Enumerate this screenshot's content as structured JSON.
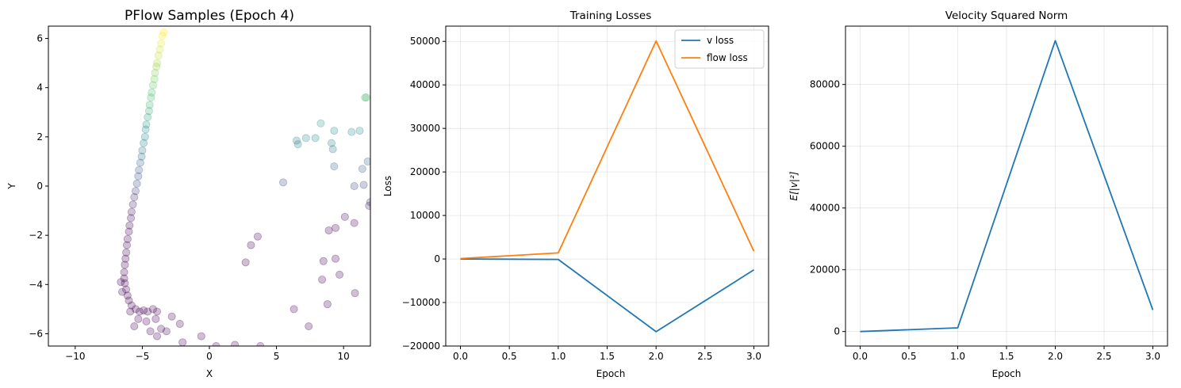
{
  "chart_data": [
    {
      "type": "scatter",
      "title": "PFlow Samples (Epoch 4)",
      "xlabel": "X",
      "ylabel": "Y",
      "xlim": [
        -12,
        12
      ],
      "ylim": [
        -6.5,
        6.5
      ],
      "xticks": [
        -10,
        -5,
        0,
        5,
        10
      ],
      "yticks": [
        -6,
        -4,
        -2,
        0,
        2,
        4,
        6
      ],
      "x_tick_labels": [
        "−10",
        "−5",
        "0",
        "5",
        "10"
      ],
      "y_tick_labels": [
        "−6",
        "−4",
        "−2",
        "0",
        "2",
        "4",
        "6"
      ],
      "grid": false,
      "colormap": "viridis",
      "point_alpha": 0.25,
      "points": [
        [
          -3.4,
          6.25
        ],
        [
          -3.5,
          6.1
        ],
        [
          -3.6,
          5.8
        ],
        [
          -3.7,
          5.55
        ],
        [
          -3.8,
          5.3
        ],
        [
          -3.9,
          5.0
        ],
        [
          -3.95,
          4.85
        ],
        [
          -4.05,
          4.6
        ],
        [
          -4.1,
          4.35
        ],
        [
          -4.2,
          4.1
        ],
        [
          -4.3,
          3.8
        ],
        [
          -4.35,
          3.6
        ],
        [
          -4.45,
          3.3
        ],
        [
          -4.5,
          3.05
        ],
        [
          -4.6,
          2.8
        ],
        [
          -4.7,
          2.5
        ],
        [
          -4.75,
          2.3
        ],
        [
          -4.8,
          2.0
        ],
        [
          -4.9,
          1.75
        ],
        [
          -5.0,
          1.45
        ],
        [
          -5.05,
          1.2
        ],
        [
          -5.15,
          0.95
        ],
        [
          -5.25,
          0.65
        ],
        [
          -5.3,
          0.4
        ],
        [
          -5.4,
          0.1
        ],
        [
          -5.5,
          -0.2
        ],
        [
          -5.6,
          -0.45
        ],
        [
          -5.7,
          -0.75
        ],
        [
          -5.8,
          -1.05
        ],
        [
          -5.85,
          -1.3
        ],
        [
          -5.95,
          -1.6
        ],
        [
          -6.0,
          -1.85
        ],
        [
          -6.1,
          -2.15
        ],
        [
          -6.15,
          -2.4
        ],
        [
          -6.2,
          -2.7
        ],
        [
          -6.25,
          -2.95
        ],
        [
          -6.3,
          -3.2
        ],
        [
          -6.35,
          -3.5
        ],
        [
          -6.35,
          -3.75
        ],
        [
          -6.3,
          -3.95
        ],
        [
          -6.2,
          -4.2
        ],
        [
          -6.1,
          -4.45
        ],
        [
          -6.0,
          -4.65
        ],
        [
          -5.8,
          -4.85
        ],
        [
          -5.5,
          -5.0
        ],
        [
          -5.2,
          -5.1
        ],
        [
          -4.9,
          -5.05
        ],
        [
          -4.6,
          -5.1
        ],
        [
          -4.2,
          -5.0
        ],
        [
          -3.9,
          -5.1
        ],
        [
          -6.6,
          -3.9
        ],
        [
          -6.5,
          -4.3
        ],
        [
          -5.9,
          -5.1
        ],
        [
          -5.3,
          -5.4
        ],
        [
          -4.7,
          -5.5
        ],
        [
          -4.0,
          -5.4
        ],
        [
          -3.6,
          -5.8
        ],
        [
          -3.2,
          -5.9
        ],
        [
          -2.8,
          -5.3
        ],
        [
          -2.2,
          -5.6
        ],
        [
          -3.9,
          -6.1
        ],
        [
          -4.4,
          -5.9
        ],
        [
          -5.6,
          -5.7
        ],
        [
          -2.0,
          -6.35
        ],
        [
          -0.6,
          -6.1
        ],
        [
          0.5,
          -6.5
        ],
        [
          1.9,
          -6.45
        ],
        [
          3.8,
          -6.5
        ],
        [
          2.7,
          -3.1
        ],
        [
          3.1,
          -2.4
        ],
        [
          3.6,
          -2.05
        ],
        [
          5.5,
          0.15
        ],
        [
          6.3,
          -5.0
        ],
        [
          6.5,
          1.85
        ],
        [
          6.6,
          1.7
        ],
        [
          7.2,
          1.95
        ],
        [
          7.4,
          -5.7
        ],
        [
          7.9,
          1.95
        ],
        [
          8.3,
          2.55
        ],
        [
          8.4,
          -3.8
        ],
        [
          8.5,
          -3.05
        ],
        [
          8.8,
          -4.8
        ],
        [
          8.9,
          -1.8
        ],
        [
          9.1,
          1.75
        ],
        [
          9.2,
          1.5
        ],
        [
          9.3,
          0.8
        ],
        [
          9.3,
          2.25
        ],
        [
          9.4,
          -2.95
        ],
        [
          9.4,
          -1.7
        ],
        [
          9.7,
          -3.6
        ],
        [
          10.1,
          -1.25
        ],
        [
          10.6,
          2.2
        ],
        [
          10.8,
          0.0
        ],
        [
          10.8,
          -1.5
        ],
        [
          10.85,
          -4.35
        ],
        [
          11.2,
          2.25
        ],
        [
          11.4,
          0.7
        ],
        [
          11.5,
          0.05
        ],
        [
          11.6,
          3.6
        ],
        [
          11.7,
          3.6
        ],
        [
          11.8,
          1.0
        ],
        [
          11.9,
          -0.8
        ],
        [
          12.0,
          -0.65
        ]
      ]
    },
    {
      "type": "line",
      "title": "Training Losses",
      "xlabel": "Epoch",
      "ylabel": "Loss",
      "x": [
        0,
        1,
        2,
        3
      ],
      "xlim": [
        -0.15,
        3.15
      ],
      "ylim": [
        -20000,
        53500
      ],
      "xticks": [
        0.0,
        0.5,
        1.0,
        1.5,
        2.0,
        2.5,
        3.0
      ],
      "yticks": [
        -20000,
        -10000,
        0,
        10000,
        20000,
        30000,
        40000,
        50000
      ],
      "x_tick_labels": [
        "0.0",
        "0.5",
        "1.0",
        "1.5",
        "2.0",
        "2.5",
        "3.0"
      ],
      "y_tick_labels": [
        "−20000",
        "−10000",
        "0",
        "10000",
        "20000",
        "30000",
        "40000",
        "50000"
      ],
      "grid": true,
      "legend_position": "top-right",
      "series": [
        {
          "name": "v loss",
          "values": [
            0,
            -100,
            -16700,
            -2500
          ],
          "color": "#1f77b4"
        },
        {
          "name": "flow loss",
          "values": [
            100,
            1400,
            50100,
            1800
          ],
          "color": "#ff7f0e"
        }
      ]
    },
    {
      "type": "line",
      "title": "Velocity Squared Norm",
      "xlabel": "Epoch",
      "ylabel": "E[|v|²]",
      "x": [
        0,
        1,
        2,
        3
      ],
      "xlim": [
        -0.15,
        3.15
      ],
      "ylim": [
        -4700,
        98900
      ],
      "xticks": [
        0.0,
        0.5,
        1.0,
        1.5,
        2.0,
        2.5,
        3.0
      ],
      "yticks": [
        0,
        20000,
        40000,
        60000,
        80000
      ],
      "x_tick_labels": [
        "0.0",
        "0.5",
        "1.0",
        "1.5",
        "2.0",
        "2.5",
        "3.0"
      ],
      "y_tick_labels": [
        "0",
        "20000",
        "40000",
        "60000",
        "80000"
      ],
      "grid": true,
      "series": [
        {
          "values": [
            0,
            1200,
            94200,
            7000
          ],
          "color": "#1f77b4"
        }
      ]
    }
  ]
}
